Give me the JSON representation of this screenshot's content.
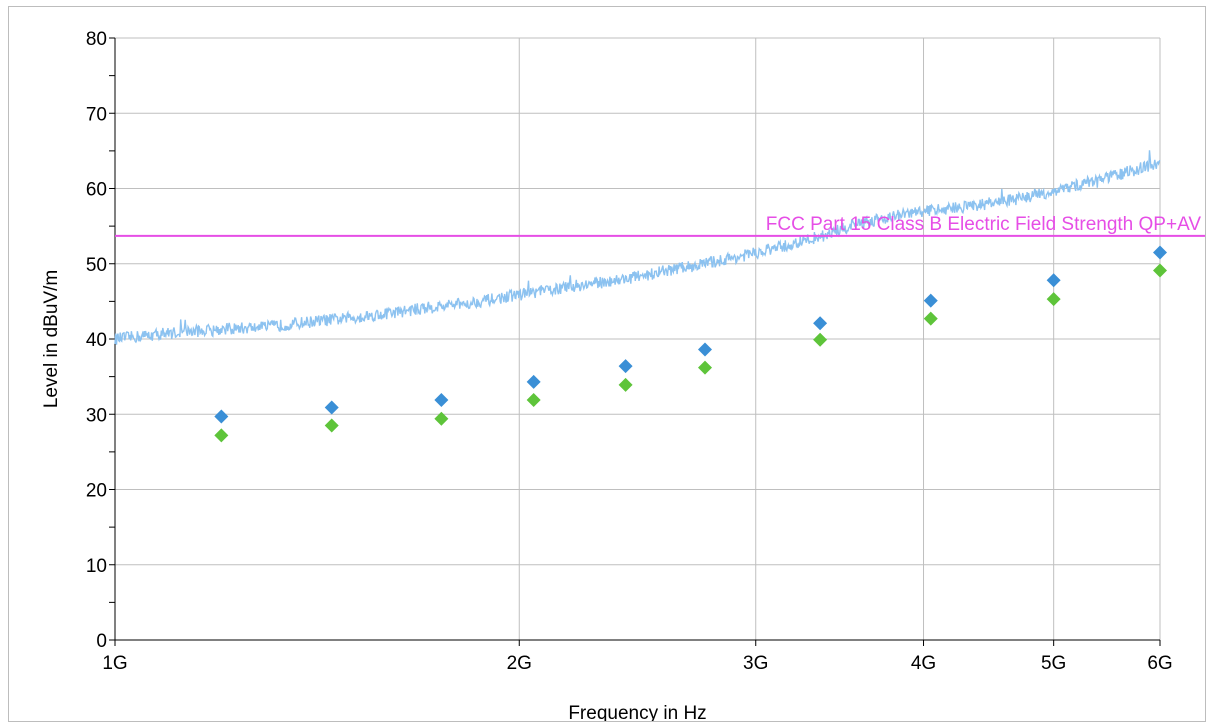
{
  "colors": {
    "background": "#ffffff",
    "grid": "#bfbfbf",
    "axis": "#000000",
    "limit_line": "#e64ee6",
    "trace": "#8cc2f0",
    "peak_markers": "#3a8fd6",
    "average_markers": "#5ec43a"
  },
  "chart_data": {
    "type": "scatter",
    "title": "",
    "xlabel": "Frequency in Hz",
    "ylabel": "Level in dBuV/m",
    "x_scale": "log",
    "x_unit": "Hz",
    "xlim": [
      1000000000,
      6000000000
    ],
    "ylim": [
      0,
      80
    ],
    "grid": true,
    "x_ticks": [
      {
        "value": 1000000000,
        "label": "1G"
      },
      {
        "value": 2000000000,
        "label": "2G"
      },
      {
        "value": 3000000000,
        "label": "3G"
      },
      {
        "value": 4000000000,
        "label": "4G"
      },
      {
        "value": 5000000000,
        "label": "5G"
      },
      {
        "value": 6000000000,
        "label": "6G"
      }
    ],
    "y_ticks": [
      {
        "value": 0,
        "label": "0"
      },
      {
        "value": 10,
        "label": "10"
      },
      {
        "value": 20,
        "label": "20"
      },
      {
        "value": 30,
        "label": "30"
      },
      {
        "value": 40,
        "label": "40"
      },
      {
        "value": 50,
        "label": "50"
      },
      {
        "value": 60,
        "label": "60"
      },
      {
        "value": 70,
        "label": "70"
      },
      {
        "value": 80,
        "label": "80"
      }
    ],
    "y_minor_ticks": [
      5,
      15,
      25,
      35,
      45,
      55,
      65,
      75
    ],
    "limit_line": {
      "label": "FCC Part 15 Class B Electric Field Strength QP+AV",
      "value": 53.7
    },
    "trace": {
      "x": [
        1000000000,
        1100000000,
        1200000000,
        1300000000,
        1400000000,
        1500000000,
        1600000000,
        1700000000,
        1800000000,
        1900000000,
        2000000000,
        2200000000,
        2400000000,
        2600000000,
        2800000000,
        3000000000,
        3200000000,
        3400000000,
        3600000000,
        3800000000,
        4000000000,
        4300000000,
        4600000000,
        5000000000,
        5300000000,
        5600000000,
        6000000000
      ],
      "y": [
        40.0,
        40.8,
        41.3,
        41.6,
        42.3,
        42.8,
        43.4,
        44.1,
        44.6,
        45.2,
        45.9,
        47.0,
        48.0,
        49.2,
        50.3,
        51.4,
        52.6,
        54.0,
        55.5,
        56.3,
        57.0,
        57.6,
        58.3,
        59.6,
        60.8,
        61.9,
        63.4
      ]
    },
    "series": [
      {
        "x": [
          1200000000,
          1450000000,
          1750000000,
          2050000000,
          2400000000,
          2750000000,
          3350000000,
          4050000000,
          5000000000,
          6000000000
        ],
        "values": [
          29.7,
          30.9,
          31.9,
          34.3,
          36.4,
          38.6,
          42.1,
          45.1,
          47.8,
          51.5
        ]
      },
      {
        "x": [
          1200000000,
          1450000000,
          1750000000,
          2050000000,
          2400000000,
          2750000000,
          3350000000,
          4050000000,
          5000000000,
          6000000000
        ],
        "values": [
          27.2,
          28.5,
          29.4,
          31.9,
          33.9,
          36.2,
          39.9,
          42.7,
          45.3,
          49.1
        ]
      }
    ]
  }
}
